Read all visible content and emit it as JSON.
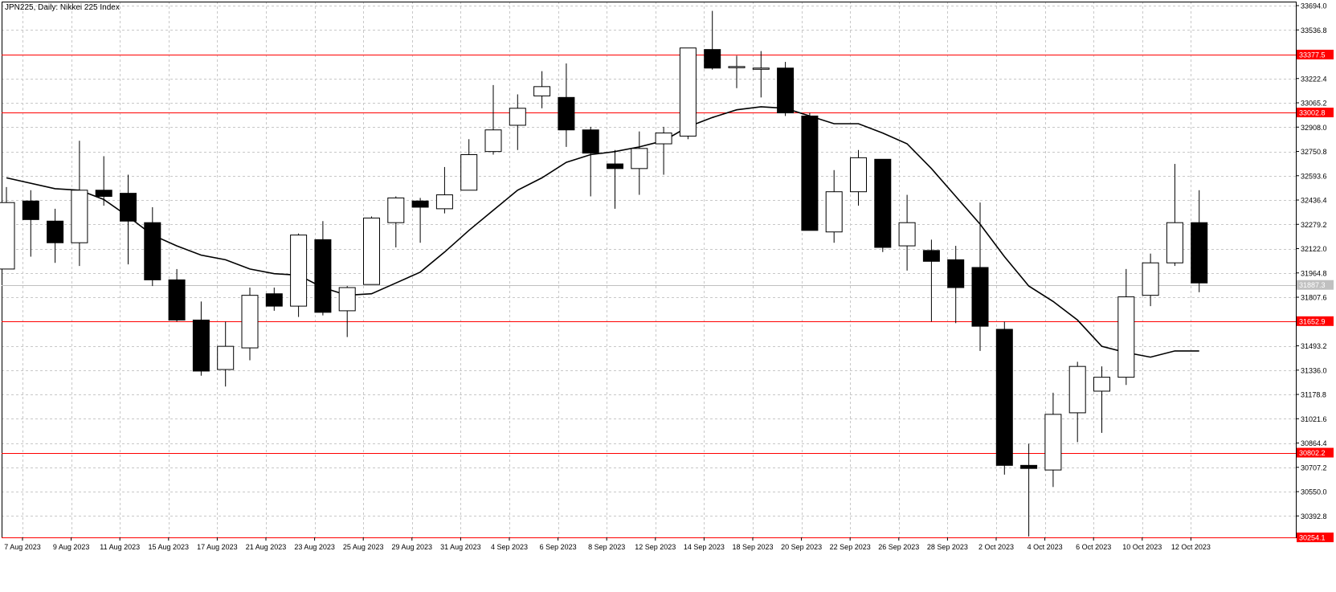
{
  "chart_title": "JPN225, Daily:  Nikkei 225 Index",
  "colors": {
    "background": "#ffffff",
    "grid": "#c8c8c8",
    "candle_bear": "#000000",
    "candle_bull": "#ffffff",
    "ma_line": "#000000",
    "levels": "#ff0000",
    "current_price_line": "#c0c0c0",
    "current_price_label_bg": "#c0c0c0"
  },
  "chart_data": {
    "type": "candlestick",
    "symbol": "JPN225",
    "timeframe": "Daily",
    "instrument": "Nikkei 225 Index",
    "ylim": [
      30254.1,
      33694.0
    ],
    "y_ticks": [
      "33694.0",
      "33536.8",
      "33379.5",
      "33222.4",
      "33065.2",
      "32908.0",
      "32750.8",
      "32593.6",
      "32436.4",
      "32279.2",
      "32122.0",
      "31964.8",
      "31807.6",
      "31650.4",
      "31493.2",
      "31336.0",
      "31178.8",
      "31021.6",
      "30864.4",
      "30707.2",
      "30550.0",
      "30392.8"
    ],
    "x_labels": [
      "7 Aug 2023",
      "9 Aug 2023",
      "11 Aug 2023",
      "15 Aug 2023",
      "17 Aug 2023",
      "21 Aug 2023",
      "23 Aug 2023",
      "25 Aug 2023",
      "29 Aug 2023",
      "31 Aug 2023",
      "4 Sep 2023",
      "6 Sep 2023",
      "8 Sep 2023",
      "12 Sep 2023",
      "14 Sep 2023",
      "18 Sep 2023",
      "20 Sep 2023",
      "22 Sep 2023",
      "26 Sep 2023",
      "28 Sep 2023",
      "2 Oct 2023",
      "4 Oct 2023",
      "6 Oct 2023",
      "10 Oct 2023",
      "12 Oct 2023"
    ],
    "horizontal_levels": [
      {
        "value": 33377.5,
        "label": "33377.5"
      },
      {
        "value": 33002.8,
        "label": "33002.8"
      },
      {
        "value": 31652.9,
        "label": "31652.9"
      },
      {
        "value": 30802.2,
        "label": "30802.2"
      },
      {
        "value": 30254.1,
        "label": "30254.1"
      }
    ],
    "current_price": {
      "value": 31887.3,
      "label": "31887.3"
    },
    "candles": [
      {
        "o": 31990,
        "h": 32520,
        "l": 31990,
        "c": 32420
      },
      {
        "o": 32430,
        "h": 32500,
        "l": 32070,
        "c": 32310
      },
      {
        "o": 32300,
        "h": 32380,
        "l": 32030,
        "c": 32160
      },
      {
        "o": 32160,
        "h": 32820,
        "l": 32010,
        "c": 32500
      },
      {
        "o": 32500,
        "h": 32720,
        "l": 32400,
        "c": 32460
      },
      {
        "o": 32480,
        "h": 32600,
        "l": 32020,
        "c": 32300
      },
      {
        "o": 32290,
        "h": 32390,
        "l": 31880,
        "c": 31920
      },
      {
        "o": 31920,
        "h": 31990,
        "l": 31650,
        "c": 31660
      },
      {
        "o": 31660,
        "h": 31780,
        "l": 31300,
        "c": 31330
      },
      {
        "o": 31340,
        "h": 31650,
        "l": 31230,
        "c": 31490
      },
      {
        "o": 31480,
        "h": 31870,
        "l": 31400,
        "c": 31820
      },
      {
        "o": 31830,
        "h": 31870,
        "l": 31720,
        "c": 31750
      },
      {
        "o": 31750,
        "h": 32220,
        "l": 31680,
        "c": 32210
      },
      {
        "o": 32180,
        "h": 32300,
        "l": 31690,
        "c": 31710
      },
      {
        "o": 31720,
        "h": 31880,
        "l": 31550,
        "c": 31870
      },
      {
        "o": 31890,
        "h": 32330,
        "l": 31890,
        "c": 32320
      },
      {
        "o": 32290,
        "h": 32460,
        "l": 32130,
        "c": 32450
      },
      {
        "o": 32430,
        "h": 32450,
        "l": 32160,
        "c": 32390
      },
      {
        "o": 32380,
        "h": 32650,
        "l": 32350,
        "c": 32470
      },
      {
        "o": 32500,
        "h": 32830,
        "l": 32500,
        "c": 32730
      },
      {
        "o": 32750,
        "h": 33180,
        "l": 32730,
        "c": 32890
      },
      {
        "o": 32920,
        "h": 33120,
        "l": 32760,
        "c": 33030
      },
      {
        "o": 33110,
        "h": 33270,
        "l": 33030,
        "c": 33170
      },
      {
        "o": 33100,
        "h": 33320,
        "l": 32780,
        "c": 32890
      },
      {
        "o": 32890,
        "h": 32910,
        "l": 32460,
        "c": 32740
      },
      {
        "o": 32670,
        "h": 32760,
        "l": 32380,
        "c": 32640
      },
      {
        "o": 32640,
        "h": 32880,
        "l": 32470,
        "c": 32770
      },
      {
        "o": 32800,
        "h": 32910,
        "l": 32600,
        "c": 32870
      },
      {
        "o": 32850,
        "h": 33420,
        "l": 32830,
        "c": 33420
      },
      {
        "o": 33410,
        "h": 33660,
        "l": 33280,
        "c": 33290
      },
      {
        "o": 33300,
        "h": 33370,
        "l": 33160,
        "c": 33300
      },
      {
        "o": 33290,
        "h": 33400,
        "l": 33100,
        "c": 33290
      },
      {
        "o": 33290,
        "h": 33330,
        "l": 32980,
        "c": 33000
      },
      {
        "o": 32980,
        "h": 33000,
        "l": 32240,
        "c": 32240
      },
      {
        "o": 32230,
        "h": 32630,
        "l": 32160,
        "c": 32490
      },
      {
        "o": 32490,
        "h": 32760,
        "l": 32400,
        "c": 32710
      },
      {
        "o": 32700,
        "h": 32700,
        "l": 32100,
        "c": 32130
      },
      {
        "o": 32140,
        "h": 32470,
        "l": 31980,
        "c": 32290
      },
      {
        "o": 32110,
        "h": 32180,
        "l": 31650,
        "c": 32040
      },
      {
        "o": 32050,
        "h": 32140,
        "l": 31640,
        "c": 31870
      },
      {
        "o": 32000,
        "h": 32420,
        "l": 31460,
        "c": 31620
      },
      {
        "o": 31600,
        "h": 31650,
        "l": 30660,
        "c": 30720
      },
      {
        "o": 30720,
        "h": 30860,
        "l": 30260,
        "c": 30700
      },
      {
        "o": 30690,
        "h": 31190,
        "l": 30580,
        "c": 31050
      },
      {
        "o": 31060,
        "h": 31390,
        "l": 30870,
        "c": 31360
      },
      {
        "o": 31200,
        "h": 31360,
        "l": 30930,
        "c": 31290
      },
      {
        "o": 31290,
        "h": 31990,
        "l": 31240,
        "c": 31810
      },
      {
        "o": 31820,
        "h": 32090,
        "l": 31750,
        "c": 32030
      },
      {
        "o": 32030,
        "h": 32670,
        "l": 32010,
        "c": 32290
      },
      {
        "o": 32290,
        "h": 32500,
        "l": 31840,
        "c": 31900
      }
    ],
    "ma": [
      32580,
      32550,
      32530,
      32500,
      32500,
      32460,
      32360,
      32200,
      32110,
      32070,
      32030,
      31980,
      31950,
      31930,
      31870,
      31830,
      31830,
      31720,
      31720,
      31780,
      31860,
      31990,
      32130,
      32270,
      32390,
      32550,
      32650,
      32700,
      32720,
      32750,
      32780,
      32810,
      32860,
      32920,
      32960,
      33000,
      33020,
      33010,
      33010,
      32990,
      32960,
      32920,
      32920,
      32880,
      32860,
      32840,
      32800,
      32760,
      32720,
      32640,
      32560,
      32460,
      32360,
      32240,
      32120,
      31990,
      31880,
      31780,
      31690,
      31600,
      31530,
      31450,
      31410,
      31410,
      31390,
      31380,
      31380,
      31370,
      31360,
      31350,
      31340,
      31320,
      31320,
      31310,
      31310,
      31300,
      31300,
      31290,
      31290,
      31290,
      31280,
      31280,
      31270,
      31270,
      31270,
      31260,
      31260,
      31260,
      31250,
      31250,
      31240,
      31240,
      31240,
      31230,
      31230,
      31230,
      31220,
      31220,
      31210,
      31210
    ],
    "ma_points": [
      {
        "x": 0,
        "y": 32580
      },
      {
        "x": 2,
        "y": 32510
      },
      {
        "x": 3,
        "y": 32500
      },
      {
        "x": 4,
        "y": 32440
      },
      {
        "x": 5,
        "y": 32330
      },
      {
        "x": 6,
        "y": 32210
      },
      {
        "x": 7,
        "y": 32140
      },
      {
        "x": 8,
        "y": 32080
      },
      {
        "x": 9,
        "y": 32050
      },
      {
        "x": 10,
        "y": 31990
      },
      {
        "x": 11,
        "y": 31960
      },
      {
        "x": 12,
        "y": 31950
      },
      {
        "x": 13,
        "y": 31870
      },
      {
        "x": 14,
        "y": 31820
      },
      {
        "x": 15,
        "y": 31830
      },
      {
        "x": 16,
        "y": 31900
      },
      {
        "x": 17,
        "y": 31970
      },
      {
        "x": 18,
        "y": 32100
      },
      {
        "x": 19,
        "y": 32240
      },
      {
        "x": 20,
        "y": 32370
      },
      {
        "x": 21,
        "y": 32500
      },
      {
        "x": 22,
        "y": 32580
      },
      {
        "x": 23,
        "y": 32680
      },
      {
        "x": 24,
        "y": 32730
      },
      {
        "x": 25,
        "y": 32750
      },
      {
        "x": 26,
        "y": 32780
      },
      {
        "x": 27,
        "y": 32820
      },
      {
        "x": 28,
        "y": 32910
      },
      {
        "x": 29,
        "y": 32970
      },
      {
        "x": 30,
        "y": 33020
      },
      {
        "x": 31,
        "y": 33040
      },
      {
        "x": 32,
        "y": 33030
      },
      {
        "x": 33,
        "y": 32980
      },
      {
        "x": 34,
        "y": 32930
      },
      {
        "x": 35,
        "y": 32930
      },
      {
        "x": 36,
        "y": 32870
      },
      {
        "x": 37,
        "y": 32800
      },
      {
        "x": 38,
        "y": 32640
      },
      {
        "x": 39,
        "y": 32460
      },
      {
        "x": 40,
        "y": 32280
      },
      {
        "x": 41,
        "y": 32070
      },
      {
        "x": 42,
        "y": 31880
      },
      {
        "x": 43,
        "y": 31780
      },
      {
        "x": 44,
        "y": 31660
      },
      {
        "x": 45,
        "y": 31490
      },
      {
        "x": 46,
        "y": 31450
      },
      {
        "x": 47,
        "y": 31420
      },
      {
        "x": 48,
        "y": 31460
      },
      {
        "x": 49,
        "y": 31460
      }
    ]
  }
}
